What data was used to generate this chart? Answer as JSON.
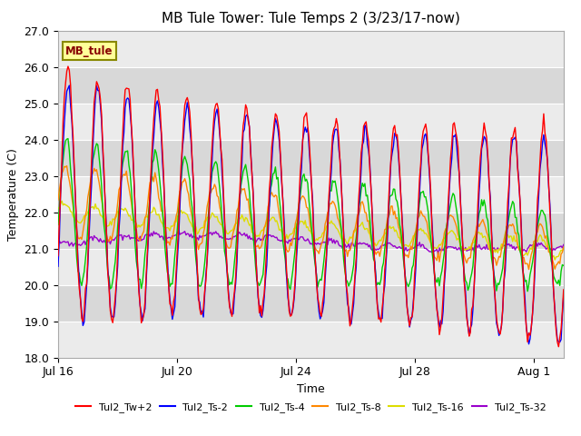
{
  "title": "MB Tule Tower: Tule Temps 2 (3/23/17-now)",
  "xlabel": "Time",
  "ylabel": "Temperature (C)",
  "ylim": [
    18.0,
    27.0
  ],
  "yticks": [
    18.0,
    19.0,
    20.0,
    21.0,
    22.0,
    23.0,
    24.0,
    25.0,
    26.0,
    27.0
  ],
  "xtick_labels": [
    "Jul 16",
    "Jul 20",
    "Jul 24",
    "Jul 28",
    "Aug 1"
  ],
  "xtick_positions": [
    0,
    4,
    8,
    12,
    16
  ],
  "total_days": 17,
  "series": {
    "Tul2_Tw+2": {
      "color": "#ff0000",
      "lw": 1.0
    },
    "Tul2_Ts-2": {
      "color": "#0000ff",
      "lw": 1.0
    },
    "Tul2_Ts-4": {
      "color": "#00cc00",
      "lw": 1.0
    },
    "Tul2_Ts-8": {
      "color": "#ff8800",
      "lw": 1.0
    },
    "Tul2_Ts-16": {
      "color": "#dddd00",
      "lw": 1.0
    },
    "Tul2_Ts-32": {
      "color": "#9900cc",
      "lw": 1.0
    }
  },
  "legend_label": "MB_tule",
  "legend_bg": "#ffff99",
  "legend_border": "#888800",
  "bg_color": "#e8e8e8",
  "band_light": "#ebebeb",
  "band_dark": "#d8d8d8",
  "title_fontsize": 11,
  "axis_fontsize": 9,
  "tick_fontsize": 9
}
